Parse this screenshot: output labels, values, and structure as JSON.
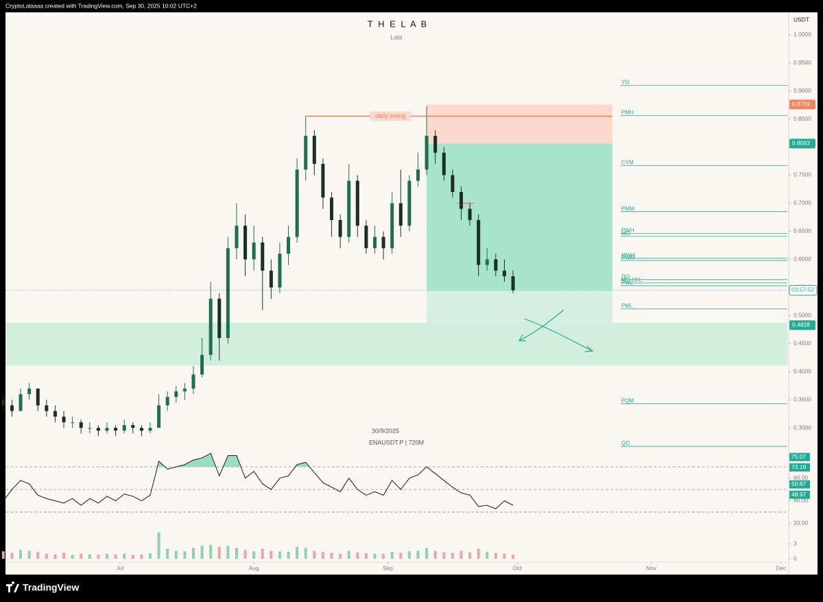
{
  "header": "CryptoLalaaaa created with TradingView.com, Sep 30, 2025 10:02 UTC+2",
  "brand": "TradingView",
  "chart_data": {
    "type": "candlestick",
    "title": "T H E L A B",
    "subtitle": "Lala",
    "watermark": [
      "30/9/2025",
      "ENAUSDT.P | 720M"
    ],
    "currency": "USDT",
    "x": [
      3,
      5,
      7,
      9,
      11,
      13,
      15,
      17,
      19,
      21,
      23,
      25,
      27,
      29,
      31,
      33,
      35,
      37,
      39,
      41,
      43,
      45,
      47,
      49,
      51,
      53,
      55,
      57,
      59,
      61,
      63,
      65,
      67,
      69,
      71,
      73,
      75,
      77,
      79,
      81,
      83,
      85,
      87,
      89,
      91,
      93,
      95,
      97,
      99,
      101,
      103,
      105,
      107,
      109,
      111,
      113,
      115,
      117,
      119,
      121
    ],
    "open": [
      0.35,
      0.34,
      0.33,
      0.36,
      0.37,
      0.34,
      0.33,
      0.32,
      0.31,
      0.31,
      0.3,
      0.3,
      0.295,
      0.3,
      0.295,
      0.305,
      0.3,
      0.295,
      0.3,
      0.34,
      0.355,
      0.365,
      0.37,
      0.395,
      0.43,
      0.53,
      0.46,
      0.62,
      0.66,
      0.6,
      0.63,
      0.58,
      0.55,
      0.61,
      0.64,
      0.76,
      0.82,
      0.77,
      0.71,
      0.67,
      0.64,
      0.74,
      0.66,
      0.62,
      0.64,
      0.62,
      0.7,
      0.66,
      0.74,
      0.76,
      0.82,
      0.79,
      0.75,
      0.72,
      0.69,
      0.67,
      0.59,
      0.6,
      0.58,
      0.57
    ],
    "high": [
      0.36,
      0.35,
      0.37,
      0.38,
      0.37,
      0.35,
      0.34,
      0.33,
      0.32,
      0.315,
      0.31,
      0.305,
      0.31,
      0.305,
      0.315,
      0.31,
      0.305,
      0.31,
      0.36,
      0.365,
      0.375,
      0.38,
      0.41,
      0.46,
      0.56,
      0.54,
      0.64,
      0.7,
      0.68,
      0.66,
      0.64,
      0.6,
      0.63,
      0.66,
      0.78,
      0.855,
      0.83,
      0.78,
      0.72,
      0.68,
      0.77,
      0.75,
      0.67,
      0.66,
      0.65,
      0.72,
      0.76,
      0.75,
      0.79,
      0.873,
      0.83,
      0.8,
      0.76,
      0.73,
      0.7,
      0.68,
      0.62,
      0.61,
      0.6,
      0.58
    ],
    "low": [
      0.33,
      0.32,
      0.33,
      0.35,
      0.33,
      0.32,
      0.31,
      0.3,
      0.3,
      0.29,
      0.29,
      0.285,
      0.29,
      0.285,
      0.29,
      0.29,
      0.285,
      0.29,
      0.3,
      0.33,
      0.345,
      0.35,
      0.36,
      0.39,
      0.42,
      0.42,
      0.45,
      0.6,
      0.57,
      0.58,
      0.51,
      0.53,
      0.54,
      0.59,
      0.63,
      0.74,
      0.75,
      0.69,
      0.64,
      0.62,
      0.63,
      0.64,
      0.61,
      0.61,
      0.6,
      0.61,
      0.64,
      0.65,
      0.73,
      0.75,
      0.77,
      0.74,
      0.71,
      0.67,
      0.66,
      0.57,
      0.58,
      0.57,
      0.56,
      0.54
    ],
    "close": [
      0.34,
      0.33,
      0.36,
      0.37,
      0.34,
      0.33,
      0.32,
      0.31,
      0.31,
      0.3,
      0.3,
      0.295,
      0.3,
      0.295,
      0.305,
      0.3,
      0.295,
      0.3,
      0.34,
      0.355,
      0.365,
      0.37,
      0.395,
      0.43,
      0.53,
      0.46,
      0.62,
      0.66,
      0.6,
      0.63,
      0.58,
      0.55,
      0.61,
      0.64,
      0.76,
      0.82,
      0.77,
      0.71,
      0.67,
      0.64,
      0.74,
      0.66,
      0.62,
      0.64,
      0.62,
      0.7,
      0.66,
      0.74,
      0.76,
      0.82,
      0.79,
      0.75,
      0.72,
      0.69,
      0.67,
      0.59,
      0.6,
      0.58,
      0.57,
      0.545
    ],
    "up_color": "#1f6e52",
    "down_color": "#1b2f29",
    "xlim": [
      3.5,
      184.5
    ],
    "xticks": [
      {
        "value": 30,
        "label": "Jul"
      },
      {
        "value": 61,
        "label": "Aug"
      },
      {
        "value": 92,
        "label": "Sep"
      },
      {
        "value": 122,
        "label": "Oct"
      },
      {
        "value": 153,
        "label": "Nov"
      },
      {
        "value": 183,
        "label": "Dec"
      }
    ],
    "ylim": [
      0.25,
      1.035
    ],
    "yticks": [
      {
        "value": 1,
        "label": "1.0000"
      },
      {
        "value": 0.95,
        "label": "0.9500"
      },
      {
        "value": 0.9,
        "label": "0.9000"
      },
      {
        "value": 0.85,
        "label": "0.8500"
      },
      {
        "value": 0.8,
        "label": "0.8000"
      },
      {
        "value": 0.75,
        "label": "0.7500"
      },
      {
        "value": 0.7,
        "label": "0.7000"
      },
      {
        "value": 0.65,
        "label": "0.6500"
      },
      {
        "value": 0.6,
        "label": "0.6000"
      },
      {
        "value": 0.55,
        "label": "0.5500"
      },
      {
        "value": 0.5,
        "label": "0.5000"
      },
      {
        "value": 0.45,
        "label": "0.4500"
      },
      {
        "value": 0.4,
        "label": "0.4000"
      },
      {
        "value": 0.35,
        "label": "0.3500"
      },
      {
        "value": 0.3,
        "label": "0.3000"
      }
    ],
    "price_labels": [
      {
        "value": 0.8759,
        "label": "0.8759",
        "color": "#f0845c"
      },
      {
        "value": 0.8063,
        "label": "0.8063",
        "color": "#22ab94"
      },
      {
        "value": 0.4828,
        "label": "0.4828",
        "color": "#22ab94"
      }
    ],
    "last_price": 0.545,
    "countdown": "03:57:52",
    "zones": [
      {
        "range": [
          0.8063,
          0.8759
        ],
        "x": [
          101,
          144
        ],
        "color": "#fcd9cc"
      },
      {
        "range": [
          0.545,
          0.8063
        ],
        "x": [
          101,
          144
        ],
        "color": "#a8e4cc"
      },
      {
        "range": [
          0.4828,
          0.545
        ],
        "x": [
          101,
          144
        ],
        "color": "#d6efe3"
      },
      {
        "range": [
          0.411,
          0.487
        ],
        "color": "#d2eedf"
      }
    ],
    "levels": [
      {
        "name": "YO",
        "value": 0.91
      },
      {
        "name": "PMH",
        "value": 0.856
      },
      {
        "name": "CYM",
        "value": 0.767
      },
      {
        "name": "PMM",
        "value": 0.685
      },
      {
        "name": "PWH",
        "value": 0.646
      },
      {
        "name": "MO",
        "value": 0.641
      },
      {
        "name": "MWH",
        "value": 0.602
      },
      {
        "name": "PWM",
        "value": 0.598
      },
      {
        "name": "DO",
        "value": 0.564
      },
      {
        "name": "MO CFL",
        "value": 0.558
      },
      {
        "name": "PWL",
        "value": 0.553
      },
      {
        "name": "PML",
        "value": 0.512
      },
      {
        "name": "PQM",
        "value": 0.343
      },
      {
        "name": "QO",
        "value": 0.267
      }
    ],
    "level_color": "#22ab94",
    "annotations": [
      {
        "text": "daily swing",
        "value": 0.855,
        "x": [
          73,
          144
        ],
        "color": "#f0845c"
      },
      {
        "value": 0.7,
        "x": [
          108,
          112
        ],
        "color": "#f0845c"
      }
    ],
    "rsi": {
      "values": [
        40,
        50,
        58,
        55,
        45,
        42,
        40,
        38,
        42,
        36,
        42,
        38,
        44,
        40,
        46,
        44,
        40,
        45,
        75,
        68,
        70,
        72,
        76,
        78,
        82,
        62,
        80,
        80,
        60,
        66,
        55,
        50,
        60,
        62,
        72,
        74,
        65,
        56,
        52,
        48,
        60,
        50,
        45,
        48,
        45,
        58,
        50,
        60,
        63,
        70,
        64,
        58,
        52,
        47,
        45,
        35,
        36,
        33,
        40,
        36
      ],
      "color": "#131722",
      "ylim": [
        16,
        82.7
      ],
      "yticks": [
        {
          "value": 60,
          "label": "60.00"
        },
        {
          "value": 40,
          "label": "40.00"
        },
        {
          "value": 20,
          "label": "20.00"
        }
      ],
      "levels": [
        30,
        50,
        70
      ],
      "badges": [
        {
          "value": 75.07,
          "label": "75.07"
        },
        {
          "value": 73.19,
          "label": "73.19"
        },
        {
          "value": 50.87,
          "label": "50.87"
        },
        {
          "value": 48.97,
          "label": "48.97"
        }
      ],
      "badge_color": "#22ab94"
    },
    "volume": {
      "values": [
        1.5,
        1.2,
        1.8,
        1.6,
        1.4,
        1.0,
        0.9,
        1.2,
        0.8,
        1.0,
        0.9,
        0.8,
        1.0,
        0.9,
        1.0,
        0.8,
        0.9,
        1.1,
        5.3,
        2.0,
        1.6,
        1.5,
        2.2,
        2.6,
        2.8,
        2.4,
        2.6,
        2.2,
        1.8,
        1.5,
        2.0,
        1.6,
        1.5,
        1.4,
        2.4,
        2.2,
        1.6,
        1.4,
        1.2,
        1.0,
        1.6,
        1.3,
        1.1,
        1.0,
        1.0,
        1.4,
        1.2,
        1.5,
        1.6,
        2.2,
        1.6,
        1.3,
        1.2,
        1.6,
        1.3,
        2.0,
        1.4,
        1.2,
        1.0,
        0.8
      ],
      "up_color": "#8fcfb6",
      "down_color": "#eca3ab",
      "ylim": [
        0,
        5.5
      ],
      "yticks": [
        3,
        0
      ]
    }
  }
}
